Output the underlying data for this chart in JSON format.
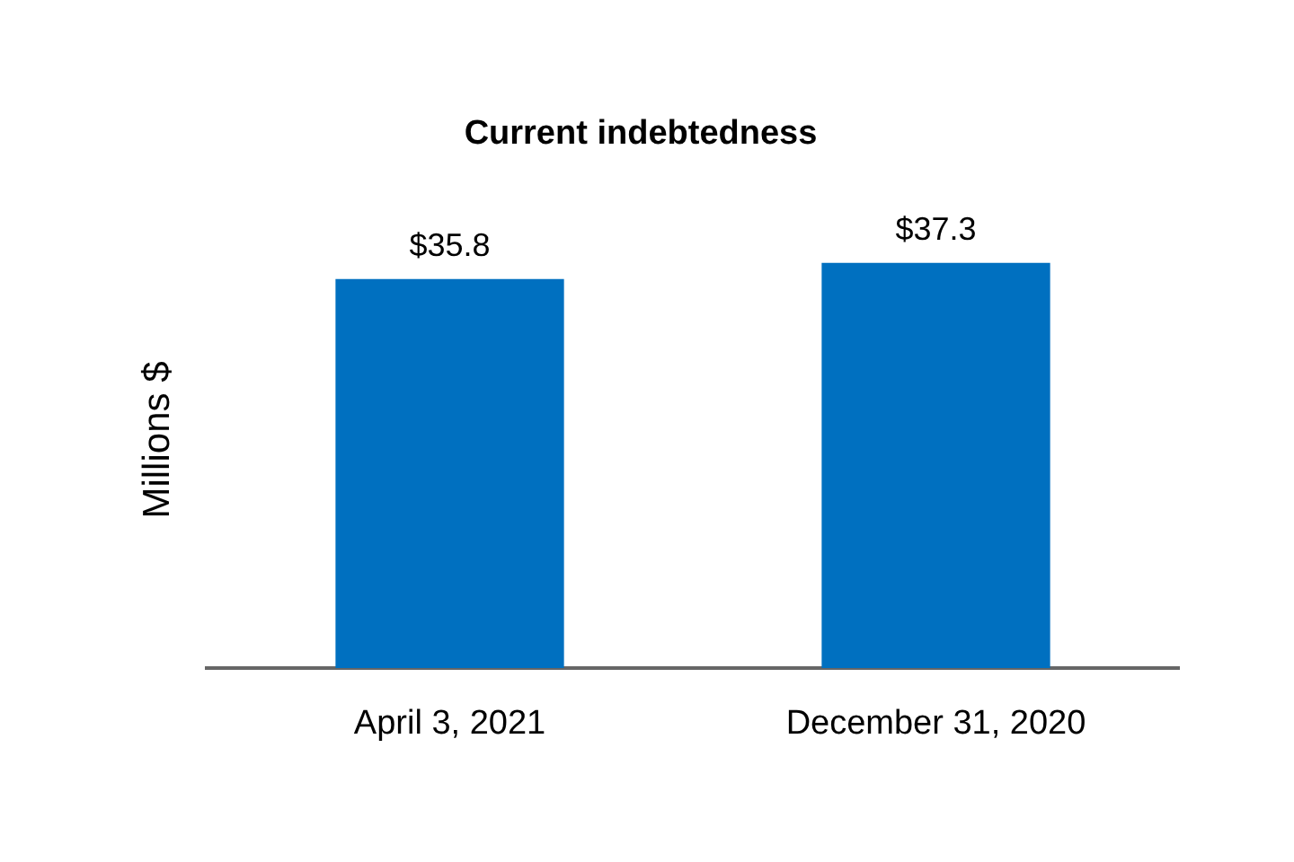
{
  "chart_data": {
    "type": "bar",
    "title": "Current indebtedness",
    "ylabel": "Millions $",
    "categories": [
      "April 3, 2021",
      "December 31, 2020"
    ],
    "values": [
      35.8,
      37.3
    ],
    "color": "#0070c0",
    "value_labels": [
      "$35.8",
      "$37.3"
    ],
    "tick_labels": "x"
  }
}
